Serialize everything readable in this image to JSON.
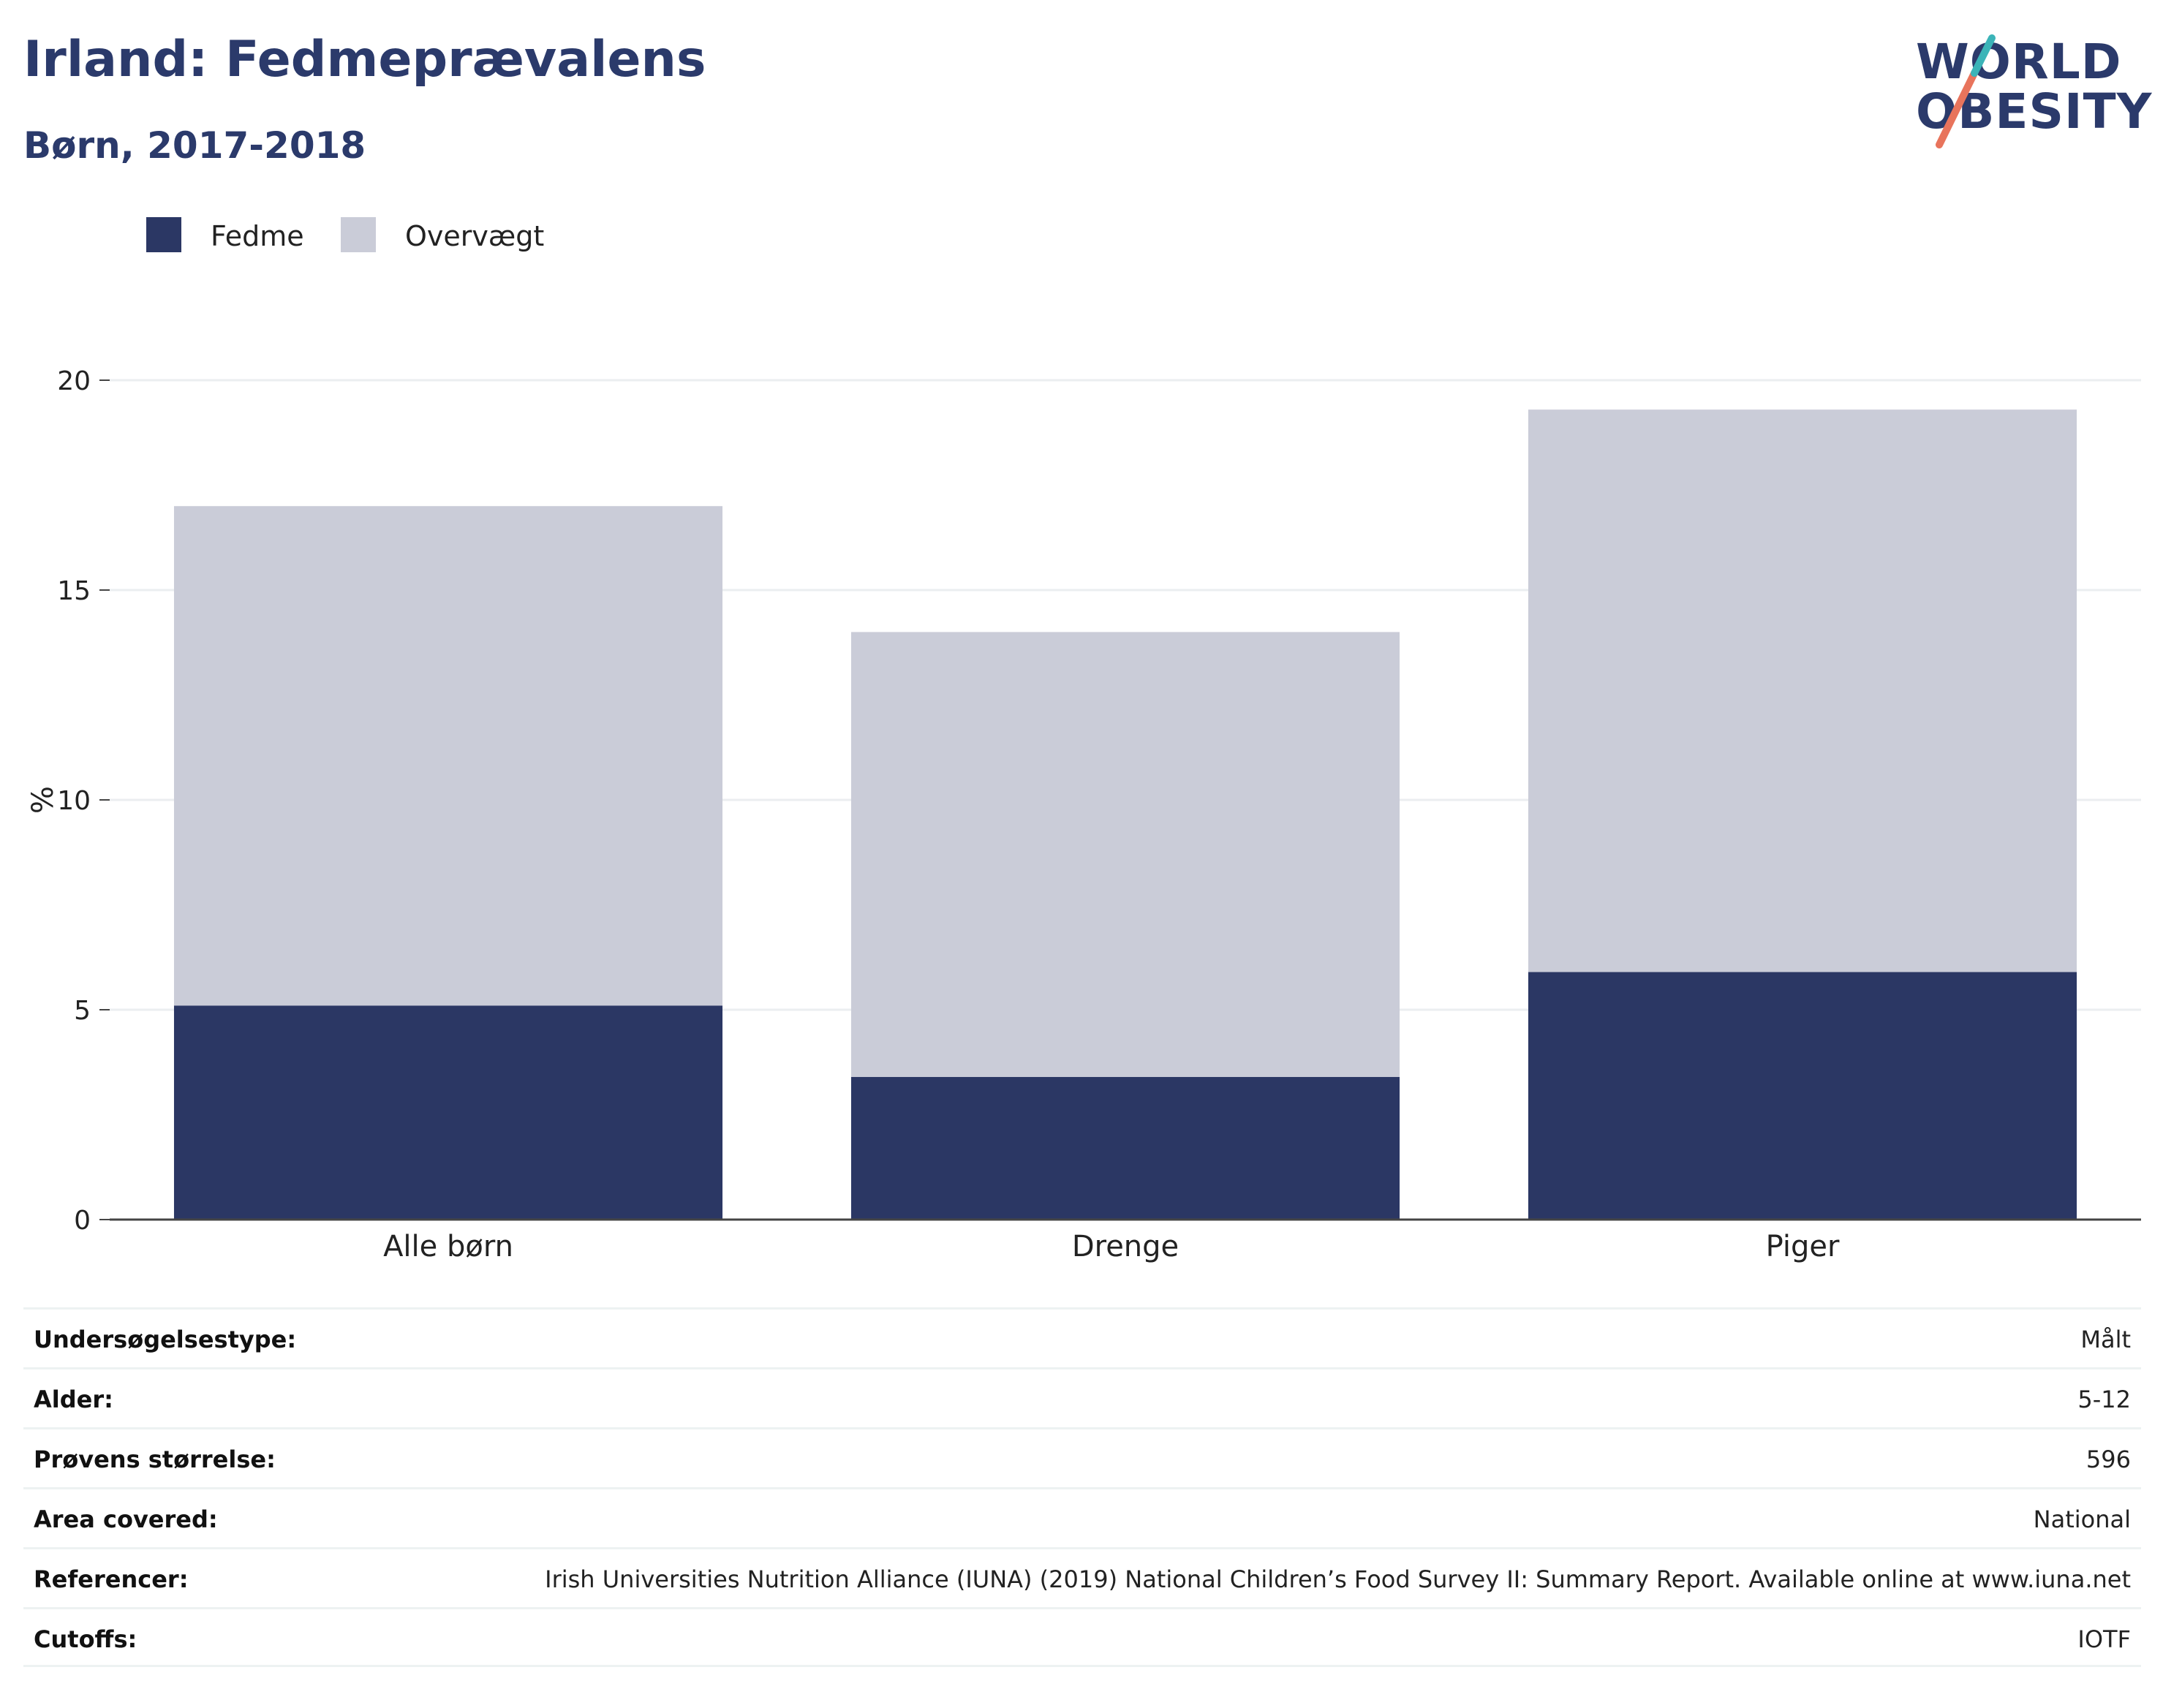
{
  "title": "Irland: Fedmeprævalens",
  "subtitle": "Børn, 2017-2018",
  "logo": {
    "line1": "WORLD",
    "line2": "OBESITY",
    "accent_colors": [
      "#e8745c",
      "#3bb4b8"
    ]
  },
  "colors": {
    "fedme": "#2b3764",
    "overvaegt": "#caccd8",
    "title": "#2b3a6b",
    "grid": "#ebeef0",
    "axis": "#444444"
  },
  "legend": [
    {
      "label": "Fedme",
      "color": "#2b3764"
    },
    {
      "label": "Overvægt",
      "color": "#caccd8"
    }
  ],
  "chart_data": {
    "type": "bar",
    "stacked": true,
    "categories": [
      "Alle børn",
      "Drenge",
      "Piger"
    ],
    "series": [
      {
        "name": "Fedme",
        "values": [
          5.1,
          3.4,
          5.9
        ]
      },
      {
        "name": "Overvægt",
        "values": [
          11.9,
          10.6,
          13.4
        ]
      }
    ],
    "ylabel": "%",
    "ylim": [
      0,
      20
    ],
    "yticks": [
      0,
      5,
      10,
      15,
      20
    ],
    "grid": true,
    "legend_position": "top-left"
  },
  "info": [
    {
      "label": "Undersøgelsestype:",
      "value": "Målt"
    },
    {
      "label": "Alder:",
      "value": "5-12"
    },
    {
      "label": "Prøvens størrelse:",
      "value": "596"
    },
    {
      "label": "Area covered:",
      "value": "National"
    },
    {
      "label": "Referencer:",
      "value": "Irish Universities Nutrition Alliance (IUNA) (2019) National Children’s Food Survey II: Summary Report. Available online at www.iuna.net"
    },
    {
      "label": "Cutoffs:",
      "value": "IOTF"
    }
  ]
}
